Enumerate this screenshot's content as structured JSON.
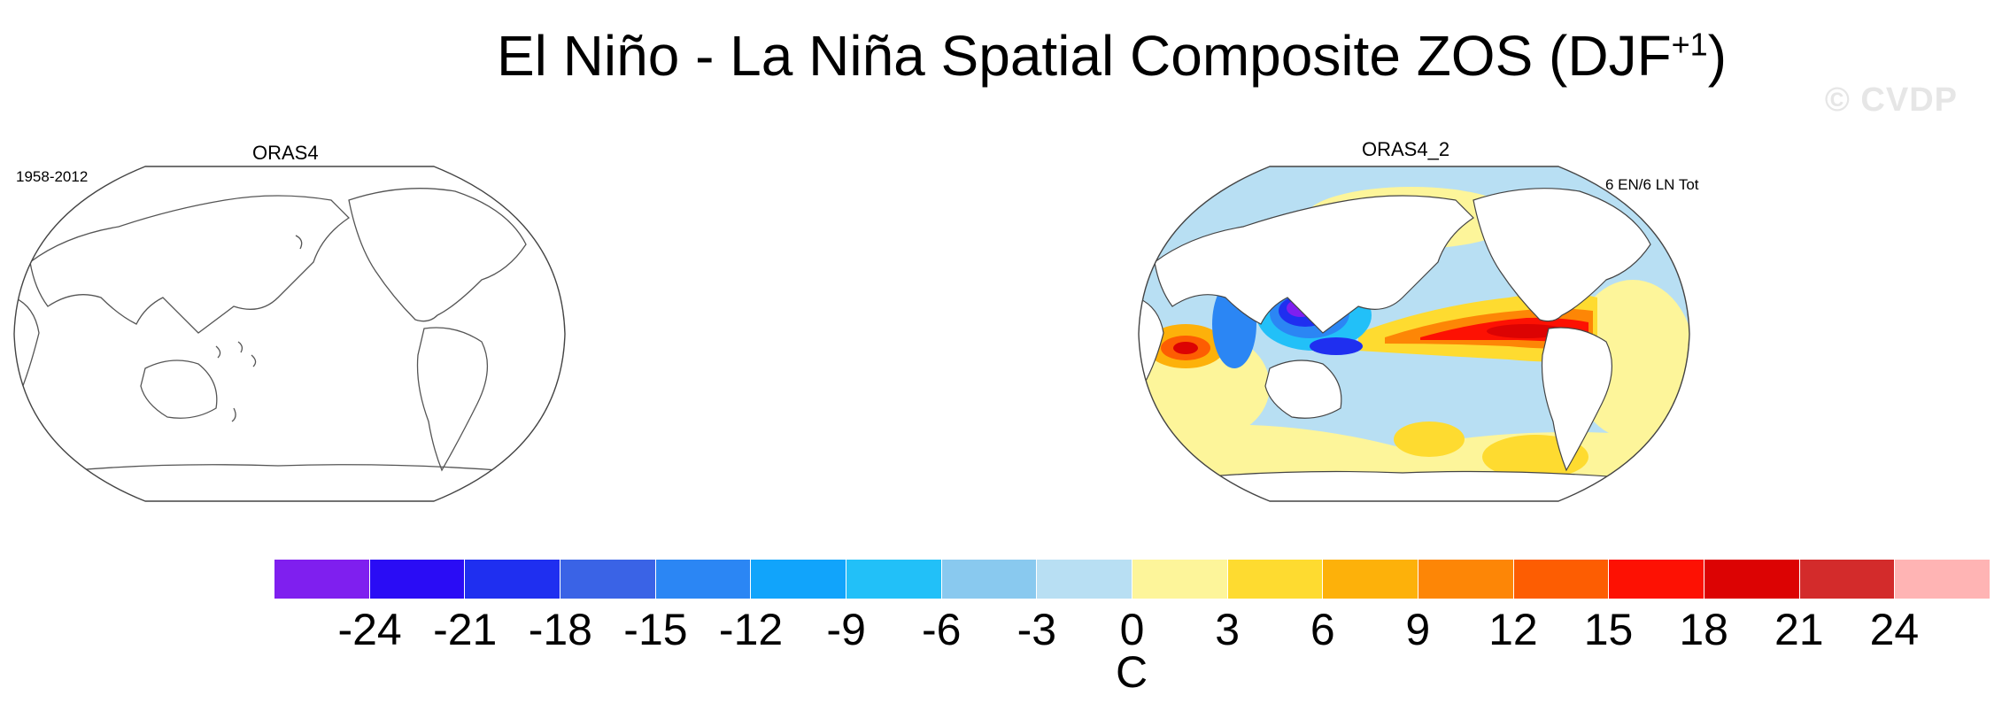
{
  "title": {
    "main": "El Niño - La Niña Spatial Composite ZOS (DJF",
    "superscript": "+1",
    "close": ")"
  },
  "watermark": "© CVDP",
  "panels": [
    {
      "label": "ORAS4",
      "period": "1958-2012"
    },
    {
      "label": "ORAS4_2",
      "count_label": "6 EN/6 LN Tot"
    }
  ],
  "colorbar": {
    "colors": [
      "#7f1fef",
      "#2a0cf5",
      "#1f2ff0",
      "#3a63e6",
      "#2b86f4",
      "#11a4fb",
      "#22c0f8",
      "#89c9ef",
      "#b8dff3",
      "#fdf59a",
      "#fedb30",
      "#fdb10a",
      "#fd8606",
      "#fd5d02",
      "#fd1103",
      "#dc0303",
      "#d32b2b",
      "#ffb4b4"
    ],
    "ticks": [
      "-24",
      "-21",
      "-18",
      "-15",
      "-12",
      "-9",
      "-6",
      "-3",
      "0",
      "3",
      "6",
      "9",
      "12",
      "15",
      "18",
      "21",
      "24"
    ],
    "unit": "C"
  }
}
